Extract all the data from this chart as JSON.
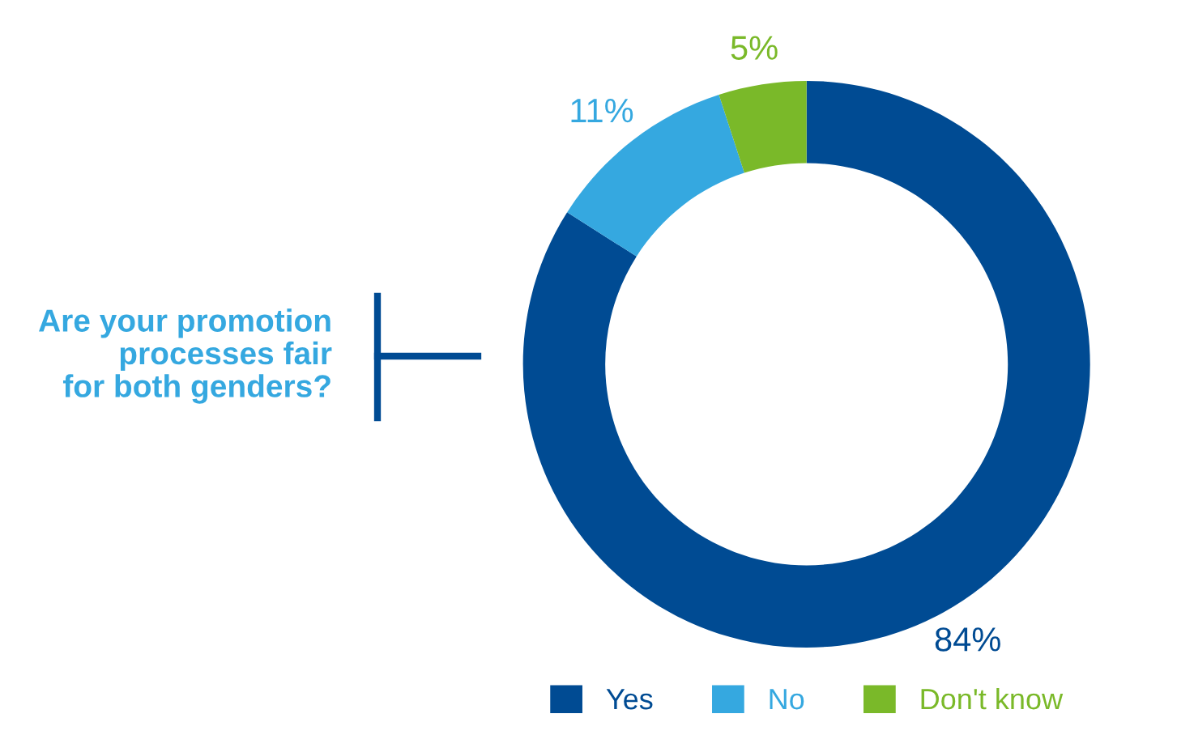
{
  "chart_data": {
    "type": "donut",
    "title": "Are your promotion\nprocesses fair\nfor both genders?",
    "categories": [
      "Yes",
      "No",
      "Don't know"
    ],
    "values": [
      84,
      11,
      5
    ],
    "colors": [
      "#004b93",
      "#35a8e0",
      "#7ab929"
    ],
    "value_labels": [
      "84%",
      "11%",
      "5%"
    ],
    "legend": "bottom"
  }
}
